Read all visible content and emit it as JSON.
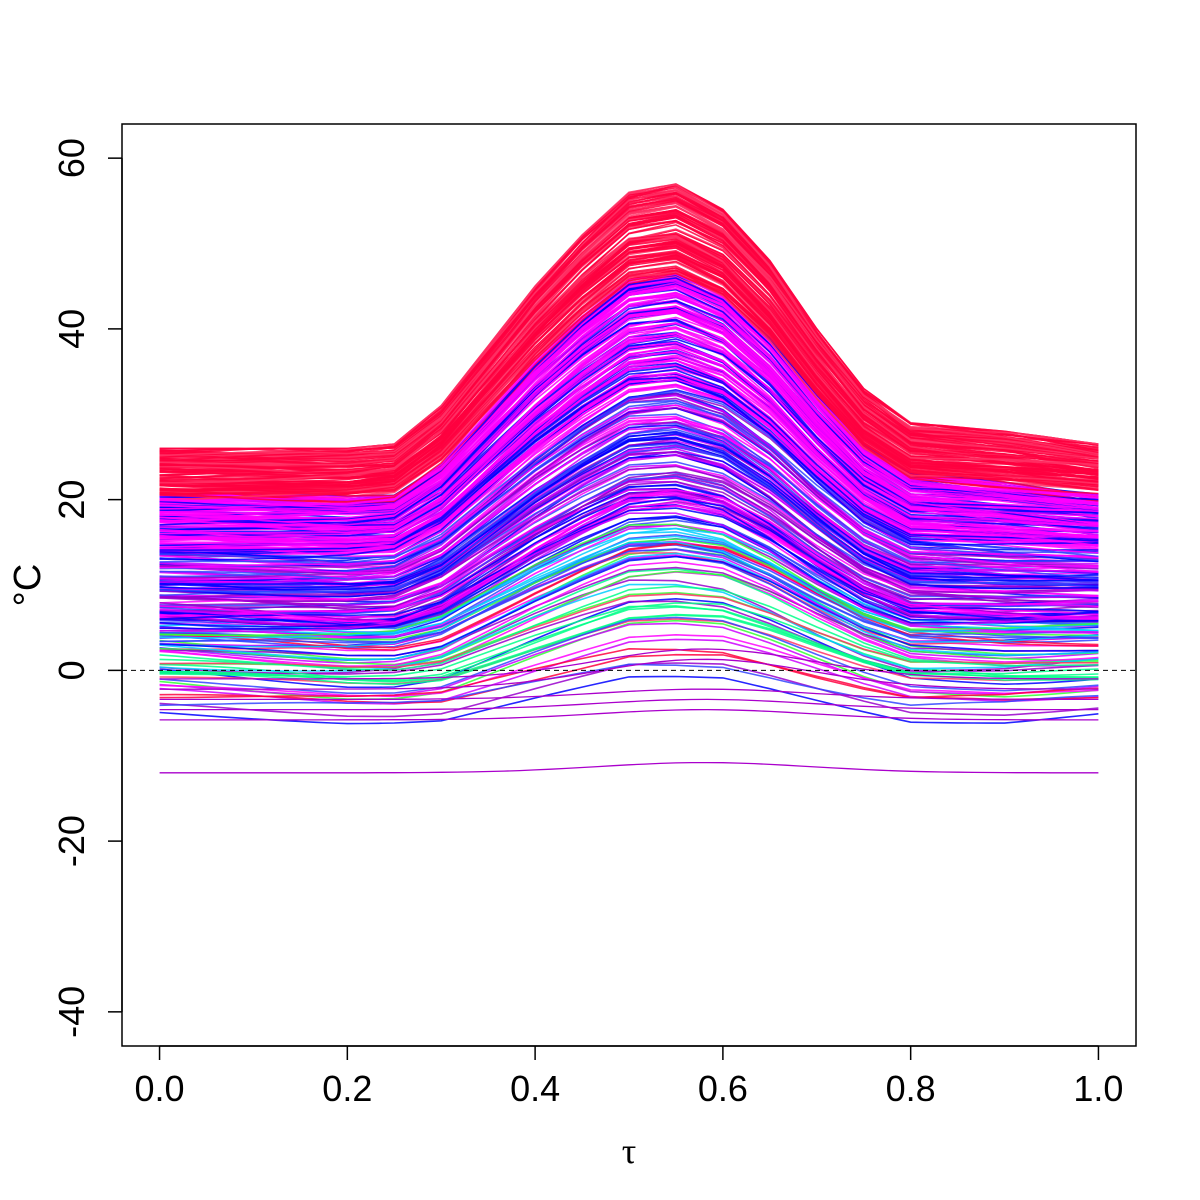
{
  "chart_data": {
    "type": "line",
    "xlabel": "τ",
    "ylabel": "°C",
    "xlim": [
      -0.04,
      1.04
    ],
    "ylim": [
      -44,
      64
    ],
    "x_ticks": [
      0.0,
      0.2,
      0.4,
      0.6,
      0.8,
      1.0
    ],
    "x_tick_labels": [
      "0.0",
      "0.2",
      "0.4",
      "0.6",
      "0.8",
      "1.0"
    ],
    "y_ticks": [
      -40,
      -20,
      0,
      20,
      40,
      60
    ],
    "y_tick_labels": [
      "-40",
      "-20",
      "0",
      "20",
      "40",
      "60"
    ],
    "reference_line": {
      "y": 0,
      "style": "dashed"
    },
    "grid": false,
    "legend": "none",
    "series_count_approx": 2000,
    "envelope": {
      "x": [
        0.0,
        0.2,
        0.25,
        0.3,
        0.35,
        0.4,
        0.45,
        0.5,
        0.55,
        0.6,
        0.65,
        0.7,
        0.75,
        0.8,
        0.9,
        1.0
      ],
      "upper": [
        26,
        26,
        26.5,
        31,
        38,
        45,
        51,
        56,
        57,
        54,
        48,
        40,
        33,
        29,
        28,
        26.5
      ],
      "lower": [
        -6,
        -7,
        -7,
        -7,
        -6,
        -5,
        -4,
        -3,
        -3,
        -3,
        -4,
        -5,
        -6,
        -7,
        -7,
        -6
      ]
    },
    "colors": [
      "#ff0040",
      "#ff00ff",
      "#cc00ff",
      "#9900cc",
      "#0000ff",
      "#3344ff",
      "#00ccff",
      "#00ff88",
      "#33ff33",
      "#ff3366"
    ]
  }
}
